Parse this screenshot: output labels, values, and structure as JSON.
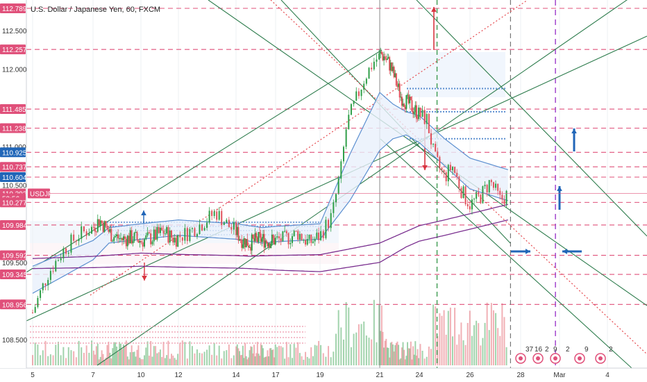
{
  "header": {
    "symbol_title": "U.S. Dollar / Japanese Yen, 60, FXCM"
  },
  "colors": {
    "up": "#2e9e47",
    "down": "#e0505a",
    "channel": "#2f7d4e",
    "level": "#e0507a",
    "trend_red": "#e5484d",
    "purple": "#7a2f8f",
    "band_blue": "#5b8fd0",
    "fill_blue": "#e8f0fb",
    "arrow_blue": "#2166b8",
    "arrow_red": "#d8343f",
    "vline_green": "#3c9a50",
    "vline_grey": "#888888",
    "vline_purple": "#9a38c9"
  },
  "chart_data": {
    "type": "line",
    "title": "U.S. Dollar / Japanese Yen, 60, FXCM",
    "ylim": [
      108.2,
      112.83
    ],
    "y_ticks": [
      "112.500",
      "112.000",
      "111.000",
      "110.500",
      "109.500",
      "108.500"
    ],
    "x_ticks": [
      "5",
      "7",
      "10",
      "12",
      "14",
      "17",
      "19",
      "21",
      "24",
      "26",
      "28",
      "Mar",
      "4"
    ],
    "price_labels": [
      {
        "value": 112.789,
        "text": "112.789",
        "color": "#e0507a"
      },
      {
        "value": 112.257,
        "text": "112.257",
        "color": "#e0507a"
      },
      {
        "value": 111.485,
        "text": "111.485",
        "color": "#e0507a"
      },
      {
        "value": 111.238,
        "text": "111.238",
        "color": "#e0507a"
      },
      {
        "value": 110.925,
        "text": "110.925",
        "color": "#2166b8"
      },
      {
        "value": 110.737,
        "text": "110.737",
        "color": "#e0507a"
      },
      {
        "value": 110.604,
        "text": "110.604",
        "color": "#2166b8"
      },
      {
        "value": 110.393,
        "text": "110.393",
        "color": "#e0507a"
      },
      {
        "value": 110.33,
        "text": "52:56",
        "color": "#e0507a"
      },
      {
        "value": 110.277,
        "text": "110.277",
        "color": "#e0507a"
      },
      {
        "value": 109.984,
        "text": "109.984",
        "color": "#e0507a"
      },
      {
        "value": 109.592,
        "text": "109.592",
        "color": "#e0507a"
      },
      {
        "value": 109.345,
        "text": "109.345",
        "color": "#e0507a"
      },
      {
        "value": 108.956,
        "text": "108.956",
        "color": "#e0507a"
      }
    ],
    "symbol_tag": {
      "text": "USDJPY",
      "value": 110.393
    },
    "horizontal_levels": [
      112.789,
      112.257,
      111.485,
      111.238,
      110.925,
      110.737,
      110.604,
      110.277,
      109.984,
      109.592,
      109.345,
      108.956
    ],
    "price_path": [
      {
        "day": 5.0,
        "price": 108.85
      },
      {
        "day": 5.5,
        "price": 109.35
      },
      {
        "day": 6.0,
        "price": 109.65
      },
      {
        "day": 6.5,
        "price": 109.85
      },
      {
        "day": 7.0,
        "price": 109.95
      },
      {
        "day": 7.4,
        "price": 110.05
      },
      {
        "day": 7.8,
        "price": 109.95
      },
      {
        "day": 8.2,
        "price": 109.85
      },
      {
        "day": 8.8,
        "price": 109.8
      },
      {
        "day": 9.5,
        "price": 109.82
      },
      {
        "day": 10.0,
        "price": 109.78
      },
      {
        "day": 10.6,
        "price": 109.82
      },
      {
        "day": 11.2,
        "price": 109.9
      },
      {
        "day": 11.8,
        "price": 109.8
      },
      {
        "day": 12.3,
        "price": 109.88
      },
      {
        "day": 12.8,
        "price": 110.0
      },
      {
        "day": 13.3,
        "price": 110.15
      },
      {
        "day": 13.8,
        "price": 109.95
      },
      {
        "day": 14.4,
        "price": 109.8
      },
      {
        "day": 15.0,
        "price": 109.75
      },
      {
        "day": 15.8,
        "price": 109.8
      },
      {
        "day": 16.6,
        "price": 109.78
      },
      {
        "day": 17.4,
        "price": 109.8
      },
      {
        "day": 18.0,
        "price": 109.88
      },
      {
        "day": 18.5,
        "price": 109.75
      },
      {
        "day": 19.0,
        "price": 109.85
      },
      {
        "day": 19.4,
        "price": 110.1
      },
      {
        "day": 19.7,
        "price": 110.7
      },
      {
        "day": 19.9,
        "price": 111.3
      },
      {
        "day": 20.2,
        "price": 111.6
      },
      {
        "day": 20.5,
        "price": 111.9
      },
      {
        "day": 20.8,
        "price": 112.1
      },
      {
        "day": 21.1,
        "price": 112.2
      },
      {
        "day": 21.4,
        "price": 112.15
      },
      {
        "day": 21.8,
        "price": 112.05
      },
      {
        "day": 22.2,
        "price": 111.85
      },
      {
        "day": 22.6,
        "price": 111.65
      },
      {
        "day": 23.2,
        "price": 111.55
      },
      {
        "day": 23.8,
        "price": 111.45
      },
      {
        "day": 24.3,
        "price": 111.35
      },
      {
        "day": 24.6,
        "price": 110.85
      },
      {
        "day": 25.0,
        "price": 110.6
      },
      {
        "day": 25.3,
        "price": 110.75
      },
      {
        "day": 25.7,
        "price": 110.4
      },
      {
        "day": 26.0,
        "price": 110.25
      },
      {
        "day": 26.4,
        "price": 110.35
      },
      {
        "day": 26.8,
        "price": 110.55
      },
      {
        "day": 27.2,
        "price": 110.3
      },
      {
        "day": 27.5,
        "price": 110.39
      }
    ],
    "ma_upper": [
      {
        "day": 5.0,
        "price": 109.45
      },
      {
        "day": 8.0,
        "price": 109.95
      },
      {
        "day": 12.0,
        "price": 110.05
      },
      {
        "day": 16.0,
        "price": 109.95
      },
      {
        "day": 19.0,
        "price": 110.0
      },
      {
        "day": 20.0,
        "price": 110.9
      },
      {
        "day": 21.0,
        "price": 111.7
      },
      {
        "day": 22.0,
        "price": 111.55
      },
      {
        "day": 23.0,
        "price": 111.45
      },
      {
        "day": 24.0,
        "price": 111.4
      },
      {
        "day": 25.0,
        "price": 111.1
      },
      {
        "day": 26.0,
        "price": 110.85
      },
      {
        "day": 27.5,
        "price": 110.7
      }
    ],
    "ma_lower": [
      {
        "day": 5.0,
        "price": 109.1
      },
      {
        "day": 8.0,
        "price": 109.75
      },
      {
        "day": 12.0,
        "price": 109.85
      },
      {
        "day": 16.0,
        "price": 109.75
      },
      {
        "day": 19.0,
        "price": 109.8
      },
      {
        "day": 20.0,
        "price": 110.3
      },
      {
        "day": 21.0,
        "price": 110.95
      },
      {
        "day": 22.0,
        "price": 111.1
      },
      {
        "day": 23.0,
        "price": 111.15
      },
      {
        "day": 24.0,
        "price": 111.05
      },
      {
        "day": 25.0,
        "price": 110.75
      },
      {
        "day": 26.0,
        "price": 110.45
      },
      {
        "day": 27.5,
        "price": 110.3
      }
    ],
    "slow_ma_upper": [
      {
        "day": 5.0,
        "price": 109.55
      },
      {
        "day": 10.0,
        "price": 109.62
      },
      {
        "day": 15.0,
        "price": 109.58
      },
      {
        "day": 19.0,
        "price": 109.6
      },
      {
        "day": 21.0,
        "price": 109.75
      },
      {
        "day": 23.0,
        "price": 109.9
      },
      {
        "day": 25.0,
        "price": 110.05
      },
      {
        "day": 27.5,
        "price": 110.25
      }
    ],
    "slow_ma_lower": [
      {
        "day": 5.0,
        "price": 109.42
      },
      {
        "day": 10.0,
        "price": 109.45
      },
      {
        "day": 15.0,
        "price": 109.42
      },
      {
        "day": 19.0,
        "price": 109.38
      },
      {
        "day": 21.0,
        "price": 109.5
      },
      {
        "day": 23.0,
        "price": 109.7
      },
      {
        "day": 25.0,
        "price": 109.85
      },
      {
        "day": 27.5,
        "price": 110.05
      }
    ],
    "upper_band_levels": [
      112.2,
      111.9,
      111.55
    ],
    "vertical_markers": [
      {
        "day": 21.0,
        "style": "grey"
      },
      {
        "day": 24.7,
        "style": "green"
      },
      {
        "day": 27.6,
        "style": "grey-dash"
      },
      {
        "day": 29.7,
        "style": "purple"
      }
    ],
    "volume_events": [
      "37",
      "16",
      "2",
      "9",
      "2",
      "9",
      "2"
    ]
  }
}
